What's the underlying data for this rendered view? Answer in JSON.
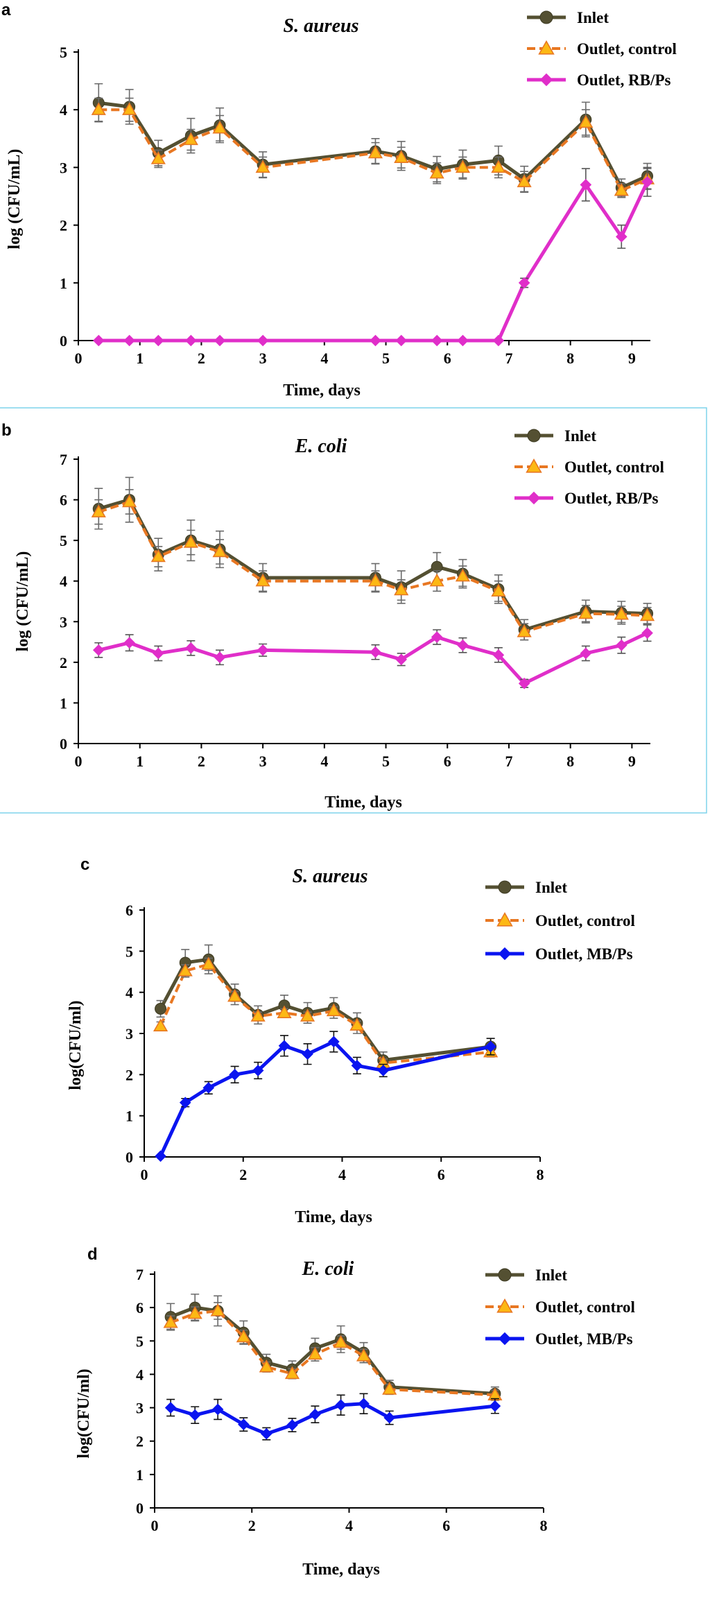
{
  "chart_data": [
    {
      "panel": "a",
      "type": "line",
      "title": "S. aureus",
      "xlabel": "Time, days",
      "ylabel": "log (CFU/mL)",
      "xlim": [
        0,
        9.3
      ],
      "ylim": [
        0,
        5
      ],
      "xticks": [
        0,
        1,
        2,
        3,
        4,
        5,
        6,
        7,
        8,
        9
      ],
      "yticks": [
        0,
        1,
        2,
        3,
        4,
        5
      ],
      "legend_position": "top-right",
      "series": [
        {
          "name": "Inlet",
          "color": "#545032",
          "dash": "solid",
          "marker": "circle",
          "x": [
            0.33,
            0.83,
            1.3,
            1.83,
            2.3,
            3.0,
            4.83,
            5.25,
            5.83,
            6.25,
            6.83,
            7.25,
            8.25,
            8.83,
            9.25
          ],
          "y": [
            4.12,
            4.05,
            3.25,
            3.55,
            3.73,
            3.05,
            3.28,
            3.2,
            2.97,
            3.05,
            3.12,
            2.8,
            3.83,
            2.65,
            2.85
          ],
          "err": [
            0.33,
            0.3,
            0.22,
            0.3,
            0.3,
            0.22,
            0.22,
            0.25,
            0.22,
            0.25,
            0.25,
            0.22,
            0.3,
            0.15,
            0.22
          ]
        },
        {
          "name": "Outlet, control",
          "color": "#e87722",
          "dash": "dashed",
          "marker": "triangle",
          "x": [
            0.33,
            0.83,
            1.3,
            1.83,
            2.3,
            3.0,
            4.83,
            5.25,
            5.83,
            6.25,
            6.83,
            7.25,
            8.25,
            8.83,
            9.25
          ],
          "y": [
            4.0,
            4.0,
            3.15,
            3.48,
            3.68,
            3.0,
            3.25,
            3.17,
            2.9,
            3.0,
            3.0,
            2.75,
            3.78,
            2.6,
            2.8
          ],
          "err": [
            0.2,
            0.2,
            0.15,
            0.18,
            0.22,
            0.18,
            0.18,
            0.18,
            0.18,
            0.18,
            0.18,
            0.18,
            0.22,
            0.12,
            0.18
          ]
        },
        {
          "name": "Outlet, RB/Ps",
          "color": "#e02ec9",
          "dash": "solid",
          "marker": "diamond",
          "x": [
            0.33,
            0.83,
            1.3,
            1.83,
            2.3,
            3.0,
            4.83,
            5.25,
            5.83,
            6.25,
            6.83,
            7.25,
            8.25,
            8.83,
            9.25
          ],
          "y": [
            0,
            0,
            0,
            0,
            0,
            0,
            0,
            0,
            0,
            0,
            0,
            1.0,
            2.7,
            1.8,
            2.75
          ],
          "err": [
            0,
            0,
            0,
            0,
            0,
            0,
            0,
            0,
            0,
            0,
            0,
            0.08,
            0.28,
            0.2,
            0.25
          ]
        }
      ]
    },
    {
      "panel": "b",
      "type": "line",
      "title": "E. coli",
      "xlabel": "Time, days",
      "ylabel": "log (CFU/mL)",
      "xlim": [
        0,
        9.3
      ],
      "ylim": [
        0,
        7
      ],
      "xticks": [
        0,
        1,
        2,
        3,
        4,
        5,
        6,
        7,
        8,
        9
      ],
      "yticks": [
        0,
        1,
        2,
        3,
        4,
        5,
        6,
        7
      ],
      "legend_position": "top-right",
      "series": [
        {
          "name": "Inlet",
          "color": "#545032",
          "dash": "solid",
          "marker": "circle",
          "x": [
            0.33,
            0.83,
            1.3,
            1.83,
            2.3,
            3.0,
            4.83,
            5.25,
            5.83,
            6.25,
            6.83,
            7.25,
            8.25,
            8.83,
            9.25
          ],
          "y": [
            5.78,
            6.0,
            4.65,
            5.0,
            4.78,
            4.08,
            4.08,
            3.85,
            4.35,
            4.18,
            3.8,
            2.8,
            3.25,
            3.22,
            3.2
          ],
          "err": [
            0.5,
            0.55,
            0.4,
            0.5,
            0.45,
            0.35,
            0.35,
            0.4,
            0.35,
            0.35,
            0.35,
            0.25,
            0.28,
            0.28,
            0.25
          ]
        },
        {
          "name": "Outlet, control",
          "color": "#e87722",
          "dash": "dashed",
          "marker": "triangle",
          "x": [
            0.33,
            0.83,
            1.3,
            1.83,
            2.3,
            3.0,
            4.83,
            5.25,
            5.83,
            6.25,
            6.83,
            7.25,
            8.25,
            8.83,
            9.25
          ],
          "y": [
            5.7,
            5.95,
            4.6,
            4.95,
            4.72,
            4.0,
            4.0,
            3.78,
            4.0,
            4.12,
            3.75,
            2.75,
            3.2,
            3.18,
            3.15
          ],
          "err": [
            0.3,
            0.3,
            0.25,
            0.3,
            0.3,
            0.25,
            0.25,
            0.25,
            0.25,
            0.25,
            0.25,
            0.2,
            0.2,
            0.2,
            0.2
          ]
        },
        {
          "name": "Outlet, RB/Ps",
          "color": "#e02ec9",
          "dash": "solid",
          "marker": "diamond",
          "x": [
            0.33,
            0.83,
            1.3,
            1.83,
            2.3,
            3.0,
            4.83,
            5.25,
            5.83,
            6.25,
            6.83,
            7.25,
            8.25,
            8.83,
            9.25
          ],
          "y": [
            2.3,
            2.48,
            2.22,
            2.35,
            2.12,
            2.3,
            2.25,
            2.07,
            2.62,
            2.42,
            2.18,
            1.48,
            2.22,
            2.42,
            2.72
          ],
          "err": [
            0.18,
            0.2,
            0.18,
            0.18,
            0.18,
            0.15,
            0.18,
            0.15,
            0.18,
            0.18,
            0.18,
            0.1,
            0.18,
            0.2,
            0.2
          ]
        }
      ]
    },
    {
      "panel": "c",
      "type": "line",
      "title": "S. aureus",
      "xlabel": "Time, days",
      "ylabel": "log(CFU/ml)",
      "xlim": [
        0,
        8
      ],
      "ylim": [
        0,
        6
      ],
      "xticks": [
        0,
        2,
        4,
        6,
        8
      ],
      "yticks": [
        0,
        1,
        2,
        3,
        4,
        5,
        6
      ],
      "legend_position": "top-right",
      "series": [
        {
          "name": "Inlet",
          "color": "#545032",
          "dash": "solid",
          "marker": "circle",
          "x": [
            0.33,
            0.83,
            1.3,
            1.83,
            2.3,
            2.83,
            3.3,
            3.83,
            4.3,
            4.83,
            7.0
          ],
          "y": [
            3.6,
            4.72,
            4.8,
            3.95,
            3.45,
            3.68,
            3.5,
            3.62,
            3.25,
            2.35,
            2.68
          ],
          "err": [
            0.2,
            0.32,
            0.35,
            0.25,
            0.22,
            0.25,
            0.25,
            0.25,
            0.25,
            0.2,
            0.2
          ]
        },
        {
          "name": "Outlet, control",
          "color": "#e87722",
          "dash": "dashed",
          "marker": "triangle",
          "x": [
            0.33,
            0.83,
            1.3,
            1.83,
            2.3,
            2.83,
            3.3,
            3.83,
            4.3,
            4.83,
            7.0
          ],
          "y": [
            3.18,
            4.52,
            4.68,
            3.9,
            3.42,
            3.5,
            3.42,
            3.55,
            3.2,
            2.28,
            2.55
          ],
          "err": [
            0.1,
            0.15,
            0.15,
            0.12,
            0.1,
            0.1,
            0.1,
            0.1,
            0.1,
            0.1,
            0.12
          ]
        },
        {
          "name": "Outlet, MB/Ps",
          "color": "#0a14f0",
          "dash": "solid",
          "marker": "diamond",
          "x": [
            0.33,
            0.83,
            1.3,
            1.83,
            2.3,
            2.83,
            3.3,
            3.83,
            4.3,
            4.83,
            7.0
          ],
          "y": [
            0.02,
            1.32,
            1.68,
            2.0,
            2.1,
            2.7,
            2.5,
            2.8,
            2.22,
            2.1,
            2.68
          ],
          "err": [
            0,
            0.1,
            0.15,
            0.2,
            0.2,
            0.25,
            0.25,
            0.25,
            0.2,
            0.15,
            0.2
          ]
        }
      ]
    },
    {
      "panel": "d",
      "type": "line",
      "title": "E. coli",
      "xlabel": "Time, days",
      "ylabel": "log(CFU/ml)",
      "xlim": [
        0,
        8
      ],
      "ylim": [
        0,
        7
      ],
      "xticks": [
        0,
        2,
        4,
        6,
        8
      ],
      "yticks": [
        0,
        1,
        2,
        3,
        4,
        5,
        6,
        7
      ],
      "legend_position": "top-right",
      "series": [
        {
          "name": "Inlet",
          "color": "#545032",
          "dash": "solid",
          "marker": "circle",
          "x": [
            0.33,
            0.83,
            1.3,
            1.83,
            2.3,
            2.83,
            3.3,
            3.83,
            4.3,
            4.83,
            7.0
          ],
          "y": [
            5.72,
            6.0,
            5.9,
            5.25,
            4.35,
            4.15,
            4.78,
            5.05,
            4.65,
            3.62,
            3.42
          ],
          "err": [
            0.4,
            0.4,
            0.45,
            0.35,
            0.25,
            0.25,
            0.3,
            0.4,
            0.3,
            0.2,
            0.2
          ]
        },
        {
          "name": "Outlet, control",
          "color": "#e87722",
          "dash": "dashed",
          "marker": "triangle",
          "x": [
            0.33,
            0.83,
            1.3,
            1.83,
            2.3,
            2.83,
            3.3,
            3.83,
            4.3,
            4.83,
            7.0
          ],
          "y": [
            5.55,
            5.82,
            5.9,
            5.12,
            4.22,
            4.02,
            4.6,
            4.95,
            4.55,
            3.55,
            3.38
          ],
          "err": [
            0.2,
            0.2,
            0.25,
            0.2,
            0.15,
            0.15,
            0.2,
            0.2,
            0.2,
            0.15,
            0.15
          ]
        },
        {
          "name": "Outlet, MB/Ps",
          "color": "#0a14f0",
          "dash": "solid",
          "marker": "diamond",
          "x": [
            0.33,
            0.83,
            1.3,
            1.83,
            2.3,
            2.83,
            3.3,
            3.83,
            4.3,
            4.83,
            7.0
          ],
          "y": [
            3.0,
            2.78,
            2.95,
            2.5,
            2.22,
            2.48,
            2.8,
            3.08,
            3.12,
            2.7,
            3.05
          ],
          "err": [
            0.25,
            0.25,
            0.3,
            0.2,
            0.18,
            0.2,
            0.25,
            0.3,
            0.3,
            0.2,
            0.22
          ]
        }
      ]
    }
  ]
}
